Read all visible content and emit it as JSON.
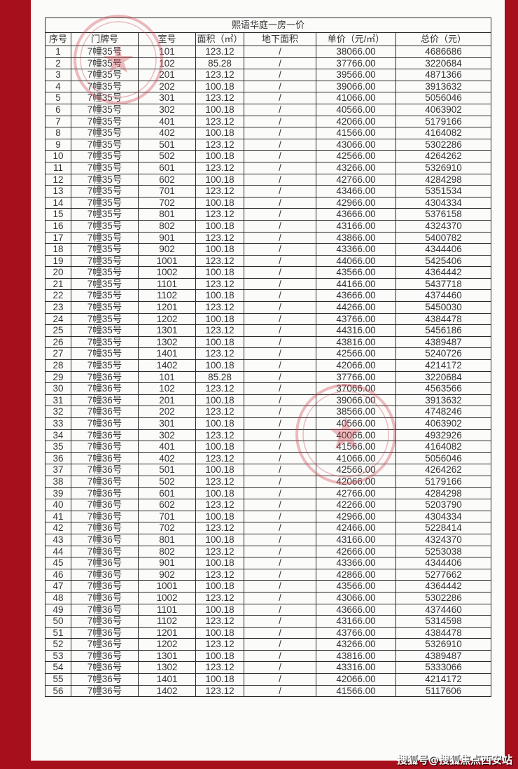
{
  "title": "熙语华庭一房一价",
  "headers": [
    "序号",
    "门牌号",
    "室号",
    "面积（㎡）",
    "地下面积",
    "单价（元/㎡）",
    "总价（元）"
  ],
  "rows": [
    [
      "1",
      "7幢35号",
      "101",
      "123.12",
      "/",
      "38066.00",
      "4686686"
    ],
    [
      "2",
      "7幢35号",
      "102",
      "85.28",
      "/",
      "37766.00",
      "3220684"
    ],
    [
      "3",
      "7幢35号",
      "201",
      "123.12",
      "/",
      "39566.00",
      "4871366"
    ],
    [
      "4",
      "7幢35号",
      "202",
      "100.18",
      "/",
      "39066.00",
      "3913632"
    ],
    [
      "5",
      "7幢35号",
      "301",
      "123.12",
      "/",
      "41066.00",
      "5056046"
    ],
    [
      "6",
      "7幢35号",
      "302",
      "100.18",
      "/",
      "40566.00",
      "4063902"
    ],
    [
      "7",
      "7幢35号",
      "401",
      "123.12",
      "/",
      "42066.00",
      "5179166"
    ],
    [
      "8",
      "7幢35号",
      "402",
      "100.18",
      "/",
      "41566.00",
      "4164082"
    ],
    [
      "9",
      "7幢35号",
      "501",
      "123.12",
      "/",
      "43066.00",
      "5302286"
    ],
    [
      "10",
      "7幢35号",
      "502",
      "100.18",
      "/",
      "42566.00",
      "4264262"
    ],
    [
      "11",
      "7幢35号",
      "601",
      "123.12",
      "/",
      "43266.00",
      "5326910"
    ],
    [
      "12",
      "7幢35号",
      "602",
      "100.18",
      "/",
      "42766.00",
      "4284298"
    ],
    [
      "13",
      "7幢35号",
      "701",
      "123.12",
      "/",
      "43466.00",
      "5351534"
    ],
    [
      "14",
      "7幢35号",
      "702",
      "100.18",
      "/",
      "42966.00",
      "4304334"
    ],
    [
      "15",
      "7幢35号",
      "801",
      "123.12",
      "/",
      "43666.00",
      "5376158"
    ],
    [
      "16",
      "7幢35号",
      "802",
      "100.18",
      "/",
      "43166.00",
      "4324370"
    ],
    [
      "17",
      "7幢35号",
      "901",
      "123.12",
      "/",
      "43866.00",
      "5400782"
    ],
    [
      "18",
      "7幢35号",
      "902",
      "100.18",
      "/",
      "43366.00",
      "4344406"
    ],
    [
      "19",
      "7幢35号",
      "1001",
      "123.12",
      "/",
      "44066.00",
      "5425406"
    ],
    [
      "20",
      "7幢35号",
      "1002",
      "100.18",
      "/",
      "43566.00",
      "4364442"
    ],
    [
      "21",
      "7幢35号",
      "1101",
      "123.12",
      "/",
      "44166.00",
      "5437718"
    ],
    [
      "22",
      "7幢35号",
      "1102",
      "100.18",
      "/",
      "43666.00",
      "4374460"
    ],
    [
      "23",
      "7幢35号",
      "1201",
      "123.12",
      "/",
      "44266.00",
      "5450030"
    ],
    [
      "24",
      "7幢35号",
      "1202",
      "100.18",
      "/",
      "43766.00",
      "4384478"
    ],
    [
      "25",
      "7幢35号",
      "1301",
      "123.12",
      "/",
      "44316.00",
      "5456186"
    ],
    [
      "26",
      "7幢35号",
      "1302",
      "100.18",
      "/",
      "43816.00",
      "4389487"
    ],
    [
      "27",
      "7幢35号",
      "1401",
      "123.12",
      "/",
      "42566.00",
      "5240726"
    ],
    [
      "28",
      "7幢35号",
      "1402",
      "100.18",
      "/",
      "42066.00",
      "4214172"
    ],
    [
      "29",
      "7幢36号",
      "101",
      "85.28",
      "/",
      "37766.00",
      "3220684"
    ],
    [
      "30",
      "7幢36号",
      "102",
      "123.12",
      "/",
      "37066.00",
      "4563566"
    ],
    [
      "31",
      "7幢36号",
      "201",
      "100.18",
      "/",
      "39066.00",
      "3913632"
    ],
    [
      "32",
      "7幢36号",
      "202",
      "123.12",
      "/",
      "38566.00",
      "4748246"
    ],
    [
      "33",
      "7幢36号",
      "301",
      "100.18",
      "/",
      "40566.00",
      "4063902"
    ],
    [
      "34",
      "7幢36号",
      "302",
      "123.12",
      "/",
      "40066.00",
      "4932926"
    ],
    [
      "35",
      "7幢36号",
      "401",
      "100.18",
      "/",
      "41566.00",
      "4164082"
    ],
    [
      "36",
      "7幢36号",
      "402",
      "123.12",
      "/",
      "41066.00",
      "5056046"
    ],
    [
      "37",
      "7幢36号",
      "501",
      "100.18",
      "/",
      "42566.00",
      "4264262"
    ],
    [
      "38",
      "7幢36号",
      "502",
      "123.12",
      "/",
      "42066.00",
      "5179166"
    ],
    [
      "39",
      "7幢36号",
      "601",
      "100.18",
      "/",
      "42766.00",
      "4284298"
    ],
    [
      "40",
      "7幢36号",
      "602",
      "123.12",
      "/",
      "42266.00",
      "5203790"
    ],
    [
      "41",
      "7幢36号",
      "701",
      "100.18",
      "/",
      "42966.00",
      "4304334"
    ],
    [
      "42",
      "7幢36号",
      "702",
      "123.12",
      "/",
      "42466.00",
      "5228414"
    ],
    [
      "43",
      "7幢36号",
      "801",
      "100.18",
      "/",
      "43166.00",
      "4324370"
    ],
    [
      "44",
      "7幢36号",
      "802",
      "123.12",
      "/",
      "42666.00",
      "5253038"
    ],
    [
      "45",
      "7幢36号",
      "901",
      "100.18",
      "/",
      "43366.00",
      "4344406"
    ],
    [
      "46",
      "7幢36号",
      "902",
      "123.12",
      "/",
      "42866.00",
      "5277662"
    ],
    [
      "47",
      "7幢36号",
      "1001",
      "100.18",
      "/",
      "43566.00",
      "4364442"
    ],
    [
      "48",
      "7幢36号",
      "1002",
      "123.12",
      "/",
      "43066.00",
      "5302286"
    ],
    [
      "49",
      "7幢36号",
      "1101",
      "100.18",
      "/",
      "43666.00",
      "4374460"
    ],
    [
      "50",
      "7幢36号",
      "1102",
      "123.12",
      "/",
      "43166.00",
      "5314598"
    ],
    [
      "51",
      "7幢36号",
      "1201",
      "100.18",
      "/",
      "43766.00",
      "4384478"
    ],
    [
      "52",
      "7幢36号",
      "1202",
      "123.12",
      "/",
      "43266.00",
      "5326910"
    ],
    [
      "53",
      "7幢36号",
      "1301",
      "100.18",
      "/",
      "43816.00",
      "4389487"
    ],
    [
      "54",
      "7幢36号",
      "1302",
      "123.12",
      "/",
      "43316.00",
      "5333066"
    ],
    [
      "55",
      "7幢36号",
      "1401",
      "100.18",
      "/",
      "42066.00",
      "4214172"
    ],
    [
      "56",
      "7幢36号",
      "1402",
      "123.12",
      "/",
      "41566.00",
      "5117606"
    ]
  ],
  "watermark": "搜狐号@搜狐焦点西安站",
  "colors": {
    "frame": "#a80f1c",
    "stamp": "#d0404a"
  }
}
